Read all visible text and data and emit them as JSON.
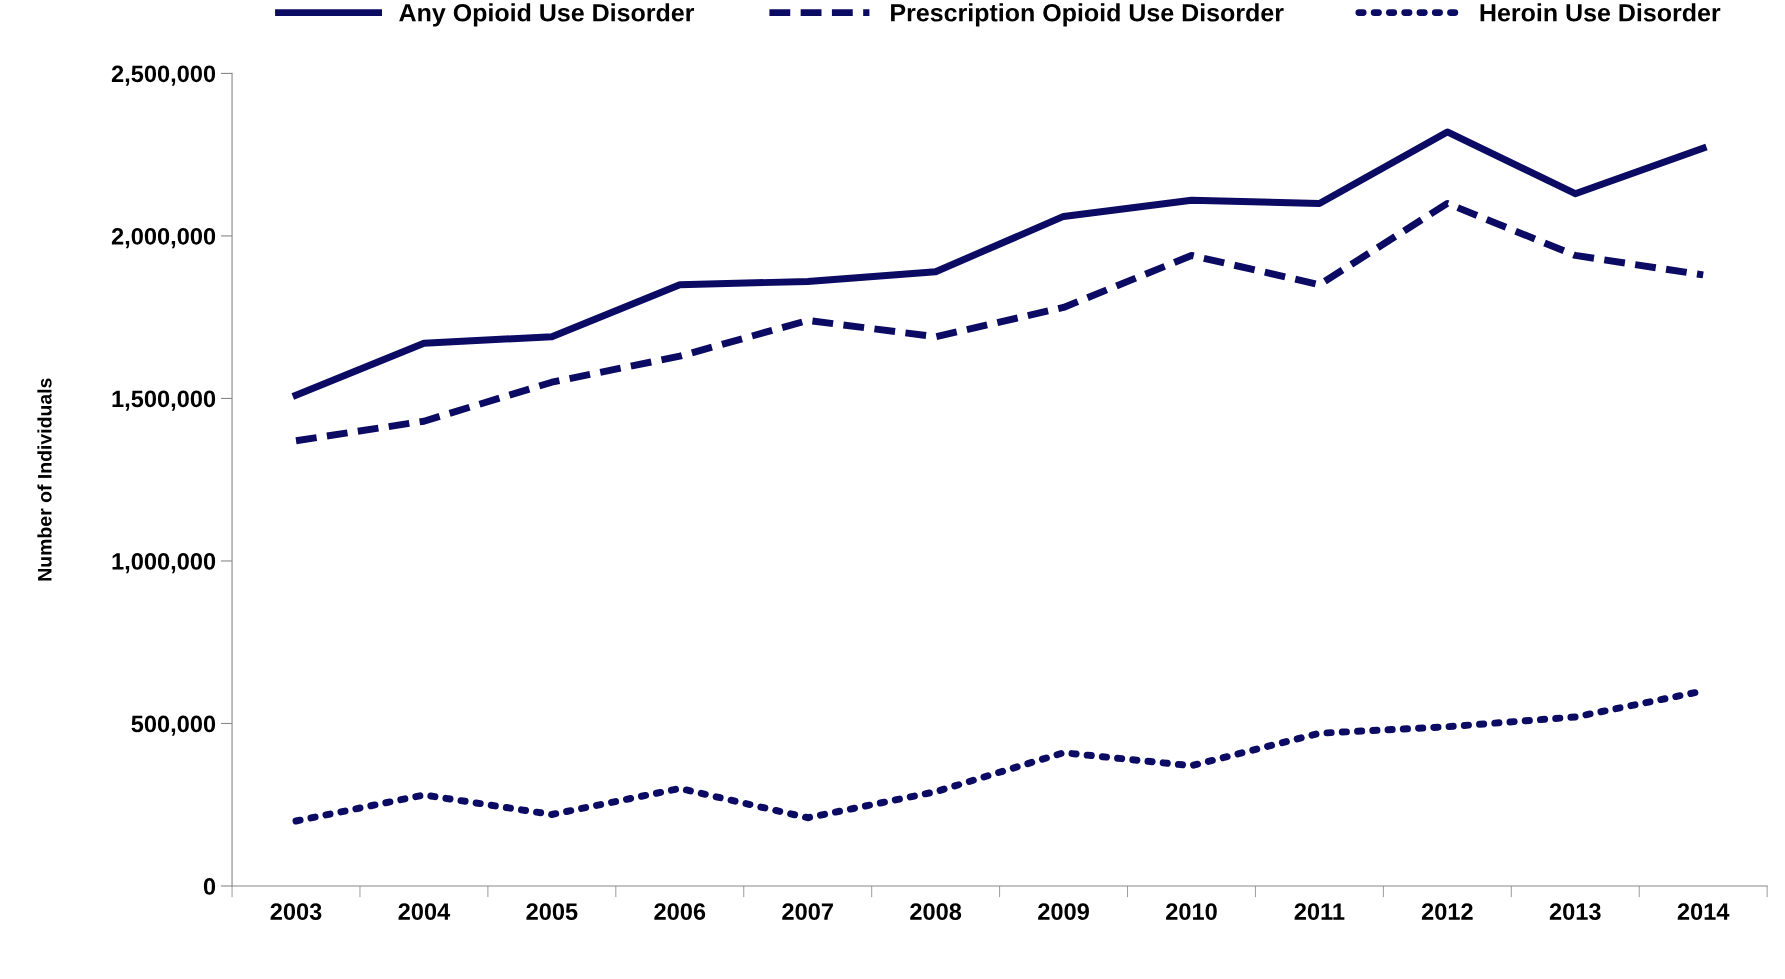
{
  "chart_data": {
    "type": "line",
    "ylabel": "Number of Individuals",
    "categories": [
      "2003",
      "2004",
      "2005",
      "2006",
      "2007",
      "2008",
      "2009",
      "2010",
      "2011",
      "2012",
      "2013",
      "2014"
    ],
    "series": [
      {
        "name": "Any Opioid Use Disorder",
        "color": "#0b0b64",
        "line_style": "solid",
        "values": [
          1510000,
          1670000,
          1690000,
          1850000,
          1860000,
          1890000,
          2060000,
          2110000,
          2100000,
          2320000,
          2130000,
          2270000
        ]
      },
      {
        "name": "Prescription Opioid Use Disorder",
        "color": "#0b0b64",
        "line_style": "dashed",
        "values": [
          1370000,
          1430000,
          1550000,
          1630000,
          1740000,
          1690000,
          1780000,
          1940000,
          1850000,
          2100000,
          1940000,
          1880000
        ]
      },
      {
        "name": "Heroin Use Disorder",
        "color": "#0b0b64",
        "line_style": "dotted",
        "values": [
          200000,
          280000,
          220000,
          300000,
          210000,
          290000,
          410000,
          370000,
          470000,
          490000,
          520000,
          600000
        ]
      }
    ],
    "ylim": [
      0,
      2500000
    ],
    "yticks": [
      {
        "value": 0,
        "label": "0"
      },
      {
        "value": 500000,
        "label": "500,000"
      },
      {
        "value": 1000000,
        "label": "1,000,000"
      },
      {
        "value": 1500000,
        "label": "1,500,000"
      },
      {
        "value": 2000000,
        "label": "2,000,000"
      },
      {
        "value": 2500000,
        "label": "2,500,000"
      }
    ],
    "grid": false,
    "legend": "top",
    "marker": "none"
  }
}
